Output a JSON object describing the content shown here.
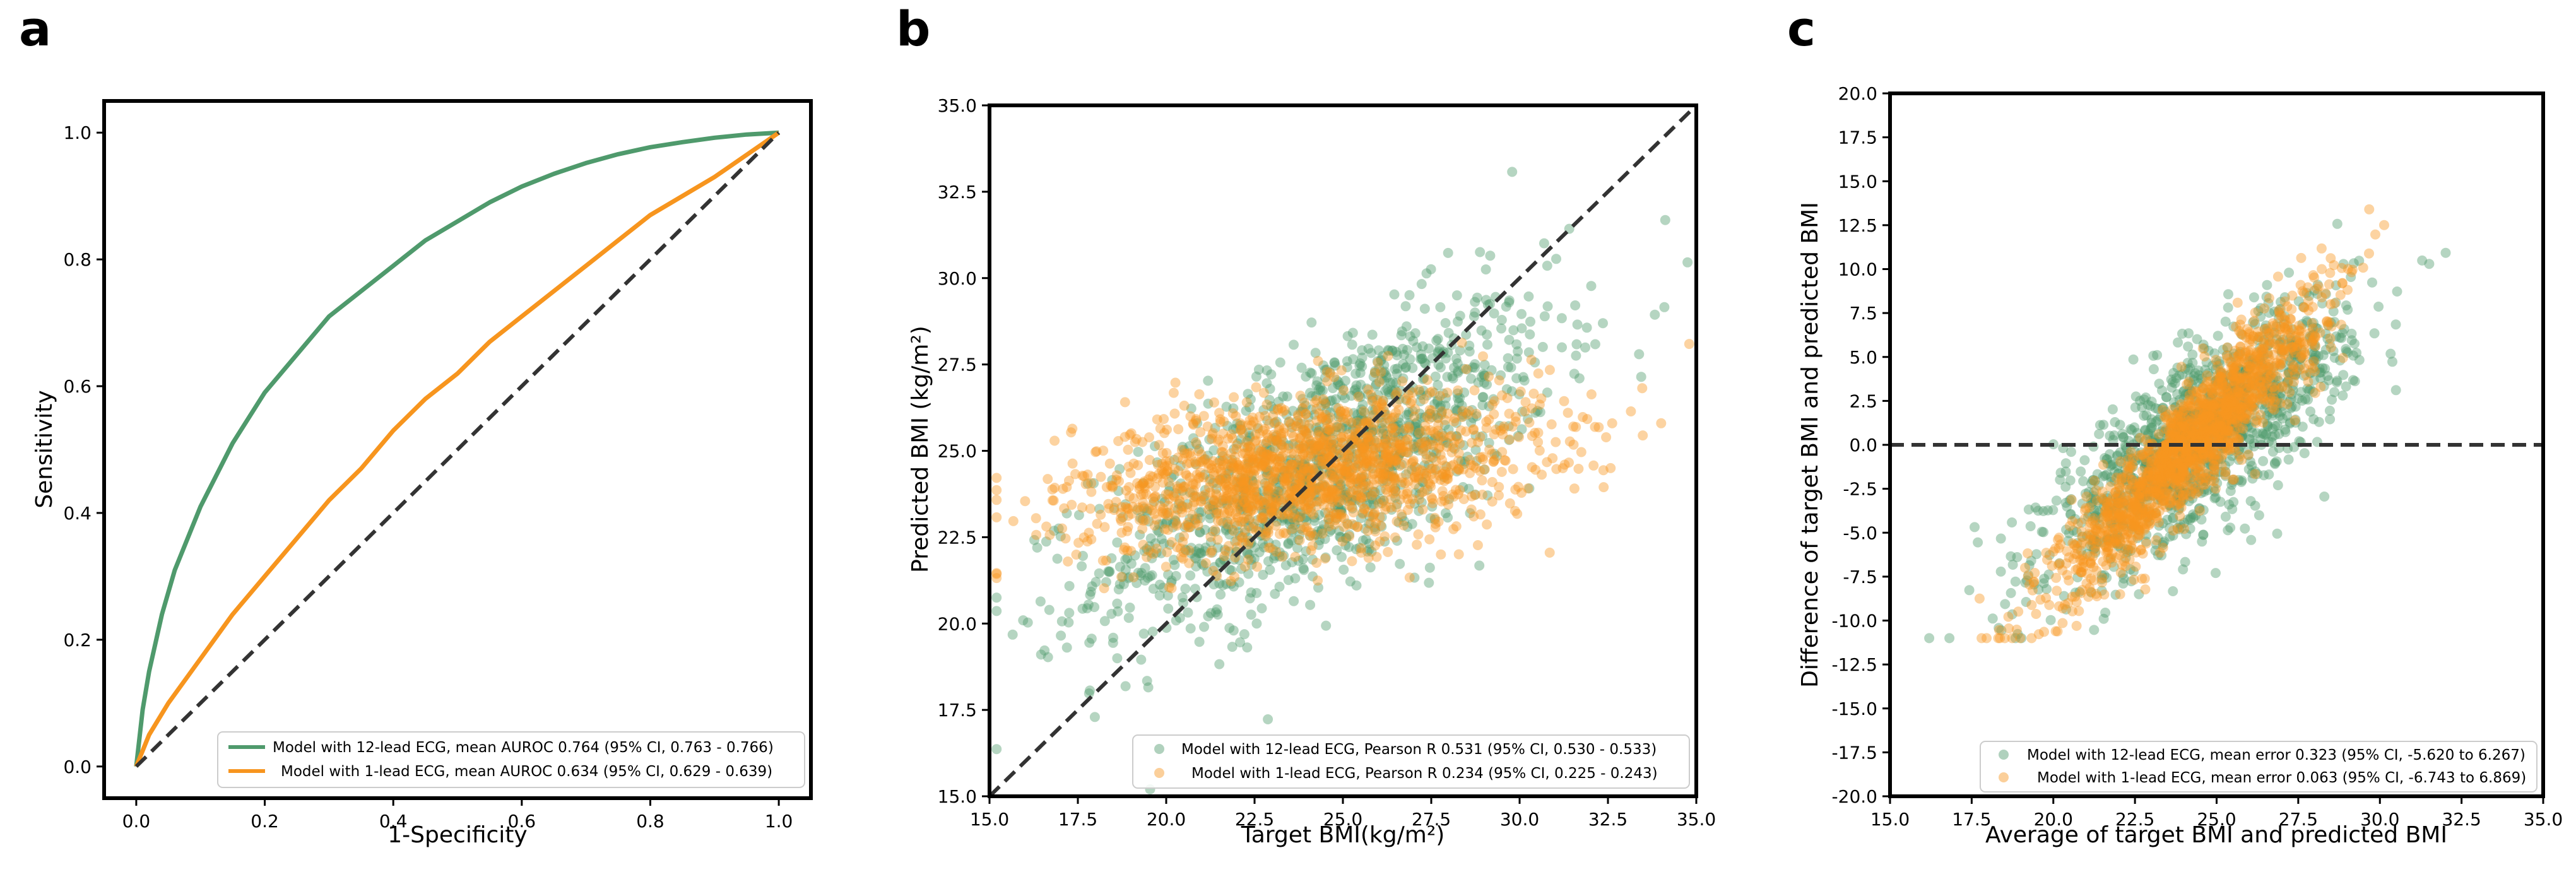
{
  "chart_data": [
    {
      "panel_label": "a",
      "type": "line",
      "title": "",
      "xlabel": "1-Specificity",
      "ylabel": "Sensitivity",
      "xlim": [
        -0.05,
        1.05
      ],
      "ylim": [
        -0.05,
        1.05
      ],
      "xticks": [
        "0.0",
        "0.2",
        "0.4",
        "0.6",
        "0.8",
        "1.0"
      ],
      "yticks": [
        "0.0",
        "0.2",
        "0.4",
        "0.6",
        "0.8",
        "1.0"
      ],
      "grid": false,
      "legend_position": "bottom-right",
      "series": [
        {
          "name": "Model with 12-lead ECG, mean AUROC 0.764 (95% CI, 0.763 - 0.766)",
          "color": "#4f9a6c",
          "x": [
            0,
            0.01,
            0.02,
            0.04,
            0.06,
            0.08,
            0.1,
            0.12,
            0.15,
            0.2,
            0.25,
            0.3,
            0.35,
            0.4,
            0.45,
            0.5,
            0.55,
            0.6,
            0.65,
            0.7,
            0.75,
            0.8,
            0.85,
            0.9,
            0.95,
            1.0
          ],
          "y": [
            0,
            0.09,
            0.15,
            0.24,
            0.31,
            0.36,
            0.41,
            0.45,
            0.51,
            0.59,
            0.65,
            0.71,
            0.75,
            0.79,
            0.83,
            0.86,
            0.89,
            0.915,
            0.935,
            0.952,
            0.966,
            0.977,
            0.985,
            0.992,
            0.997,
            1.0
          ]
        },
        {
          "name": "Model with 1-lead ECG, mean AUROC 0.634 (95% CI, 0.629 - 0.639)",
          "color": "#f7951e",
          "x": [
            0,
            0.02,
            0.05,
            0.1,
            0.15,
            0.2,
            0.25,
            0.3,
            0.35,
            0.4,
            0.45,
            0.5,
            0.55,
            0.6,
            0.65,
            0.7,
            0.75,
            0.8,
            0.85,
            0.9,
            0.95,
            1.0
          ],
          "y": [
            0,
            0.05,
            0.1,
            0.17,
            0.24,
            0.3,
            0.36,
            0.42,
            0.47,
            0.53,
            0.58,
            0.62,
            0.67,
            0.71,
            0.75,
            0.79,
            0.83,
            0.87,
            0.9,
            0.93,
            0.965,
            1.0
          ]
        },
        {
          "name": "chance",
          "color": "#333333",
          "style": "dashed",
          "x": [
            0,
            1
          ],
          "y": [
            0,
            1
          ]
        }
      ]
    },
    {
      "panel_label": "b",
      "type": "scatter",
      "title": "",
      "xlabel": "Target BMI(kg/m²)",
      "ylabel": "Predicted BMI (kg/m²)",
      "xlim": [
        15.0,
        35.0
      ],
      "ylim": [
        15.0,
        35.0
      ],
      "xticks": [
        "15.0",
        "17.5",
        "20.0",
        "22.5",
        "25.0",
        "27.5",
        "30.0",
        "32.5",
        "35.0"
      ],
      "yticks": [
        "15.0",
        "17.5",
        "20.0",
        "22.5",
        "25.0",
        "27.5",
        "30.0",
        "32.5",
        "35.0"
      ],
      "grid": false,
      "legend_position": "bottom-right",
      "identity_line": {
        "x": [
          15,
          35
        ],
        "y": [
          15,
          35
        ],
        "color": "#333333",
        "style": "dashed"
      },
      "series": [
        {
          "name": "Model with 12-lead ECG, Pearson R 0.531 (95% CI, 0.530 - 0.533)",
          "color": "#4f9a6c",
          "n_points": 1300,
          "x_mean": 24.5,
          "x_sd": 3.2,
          "slope": 0.5,
          "intercept_at_mean": 24.6,
          "resid_sd": 1.7
        },
        {
          "name": "Model with 1-lead ECG, Pearson R 0.234 (95% CI, 0.225 - 0.243)",
          "color": "#f7951e",
          "n_points": 1500,
          "x_mean": 24.0,
          "x_sd": 3.3,
          "slope": 0.12,
          "intercept_at_mean": 24.4,
          "resid_sd": 1.1
        }
      ]
    },
    {
      "panel_label": "c",
      "type": "scatter",
      "title": "",
      "xlabel": "Average of target BMI and predicted BMI",
      "ylabel": "Difference of target BMI and predicted BMI",
      "xlim": [
        15.0,
        35.0
      ],
      "ylim": [
        -20.0,
        20.0
      ],
      "xticks": [
        "15.0",
        "17.5",
        "20.0",
        "22.5",
        "25.0",
        "27.5",
        "30.0",
        "32.5",
        "35.0"
      ],
      "yticks": [
        "-20.0",
        "-17.5",
        "-15.0",
        "-12.5",
        "-10.0",
        "-7.5",
        "-5.0",
        "-2.5",
        "0.0",
        "2.5",
        "5.0",
        "7.5",
        "10.0",
        "12.5",
        "15.0",
        "17.5",
        "20.0"
      ],
      "grid": false,
      "legend_position": "bottom-right",
      "zero_line": {
        "y": 0,
        "color": "#333333",
        "style": "dashed"
      },
      "series": [
        {
          "name": "Model with 12-lead ECG, mean error 0.323 (95% CI, -5.620 to 6.267)",
          "color": "#4f9a6c",
          "n_points": 1300,
          "x_mean": 24.5,
          "x_sd": 2.3,
          "slope": 1.3,
          "mean_error": 0.323,
          "resid_sd": 2.4
        },
        {
          "name": "Model with 1-lead ECG, mean error 0.063 (95% CI, -6.743 to 6.869)",
          "color": "#f7951e",
          "n_points": 1500,
          "x_mean": 24.2,
          "x_sd": 2.0,
          "slope": 1.9,
          "mean_error": 0.063,
          "resid_sd": 1.6
        }
      ]
    }
  ]
}
